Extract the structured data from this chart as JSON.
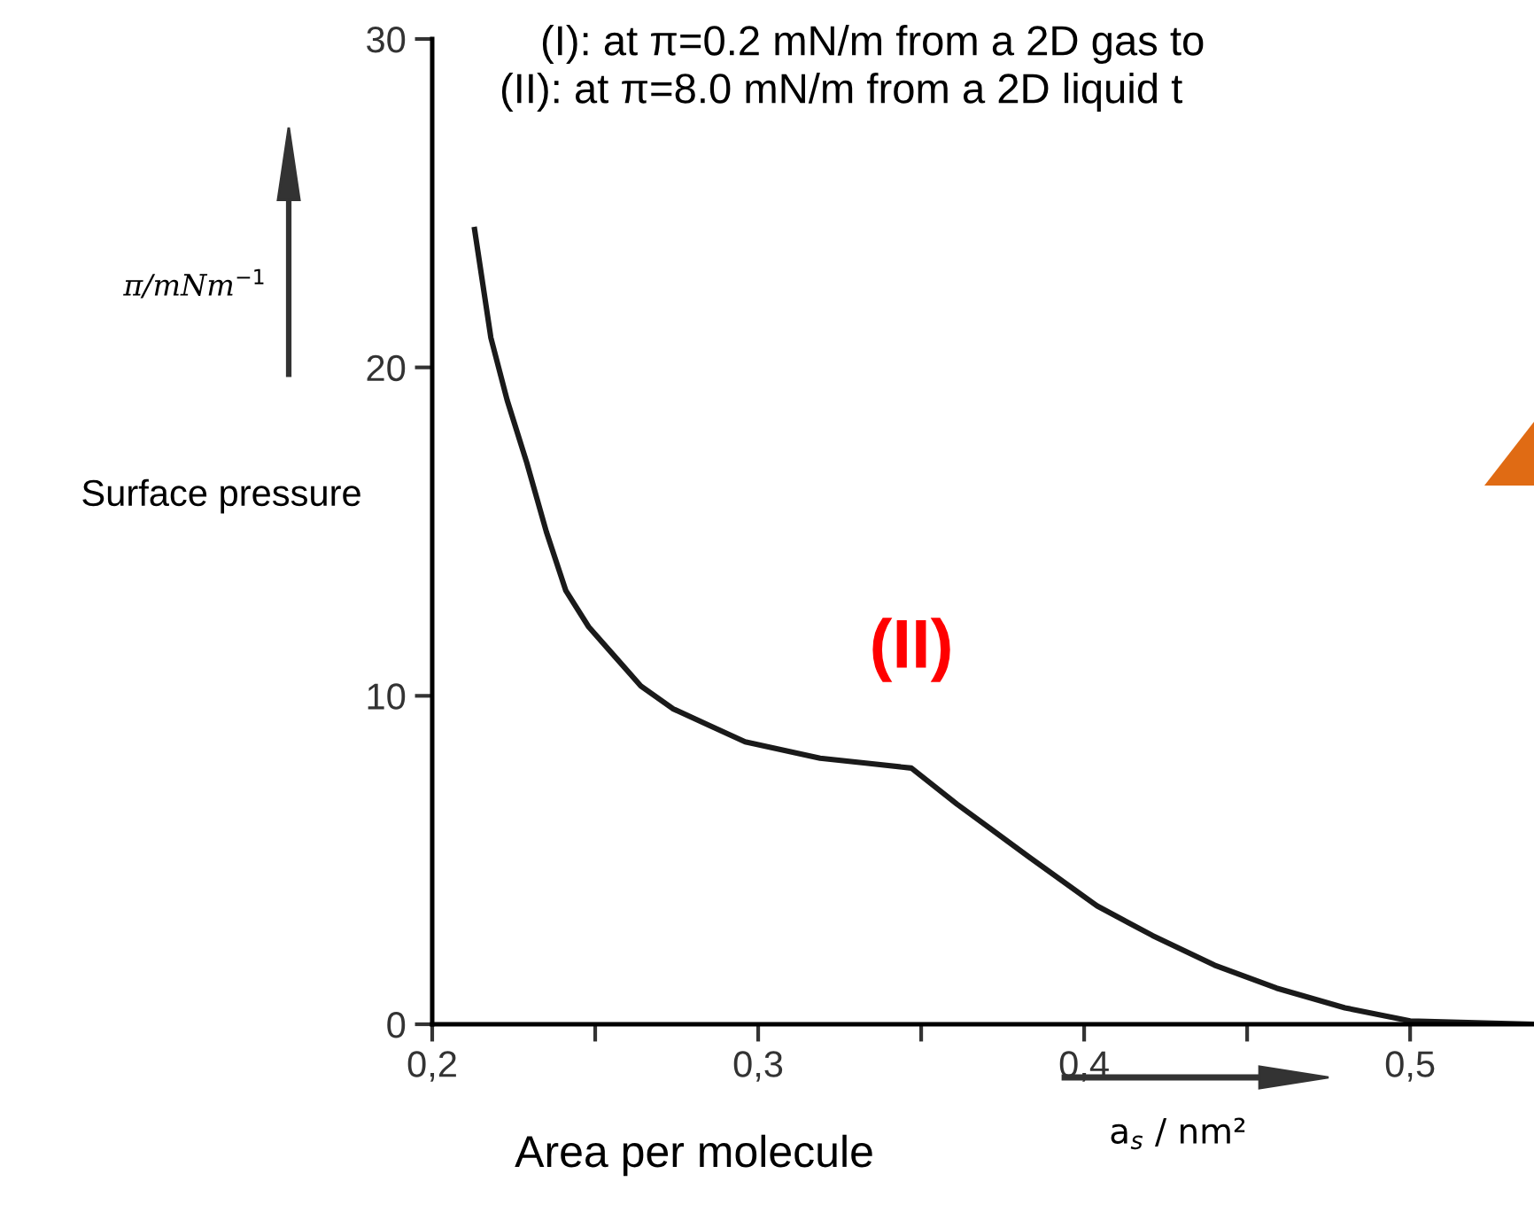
{
  "chart_data": {
    "type": "line",
    "title": "(I): at π=0.2 mN/m from a 2D gas to",
    "subtitle": "(II): at π=8.0 mN/m from a 2D liquid t",
    "ylabel": "π/mNm$^{−1}$",
    "xlabel": "a$_{s}$ / nm²",
    "x": [
      0.213,
      0.218,
      0.223,
      0.229,
      0.235,
      0.241,
      0.248,
      0.256,
      0.264,
      0.274,
      0.285,
      0.296,
      0.319,
      0.333,
      0.347,
      0.361,
      0.372,
      0.383,
      0.404,
      0.421,
      0.44,
      0.459,
      0.48,
      0.5,
      0.538
    ],
    "series": [
      {
        "color": "#1a1a1a",
        "values": [
          24.2,
          20.9,
          19.0,
          17.1,
          15.0,
          13.2,
          12.1,
          11.2,
          10.3,
          9.6,
          9.1,
          8.6,
          8.1,
          7.95,
          7.8,
          6.7,
          5.9,
          5.1,
          3.6,
          2.7,
          1.8,
          1.1,
          0.5,
          0.1,
          0.0
        ]
      }
    ],
    "xlim": [
      0.2,
      0.538
    ],
    "ylim": [
      0,
      30
    ],
    "xticks": [
      {
        "value": 0.2,
        "label": "0,2"
      },
      {
        "value": 0.25,
        "label": null
      },
      {
        "value": 0.3,
        "label": "0,3"
      },
      {
        "value": 0.35,
        "label": null
      },
      {
        "value": 0.4,
        "label": "0,4"
      },
      {
        "value": 0.45,
        "label": null
      },
      {
        "value": 0.5,
        "label": "0,5"
      }
    ],
    "yticks": [
      0,
      10,
      20,
      30
    ],
    "annotations": [
      "Surface pressure",
      "Area per molecule",
      {
        "text": "(II)",
        "x": 0.347,
        "y": 7.8
      }
    ],
    "grid": false,
    "legend": false,
    "marker": "none",
    "line_style": "solid"
  }
}
